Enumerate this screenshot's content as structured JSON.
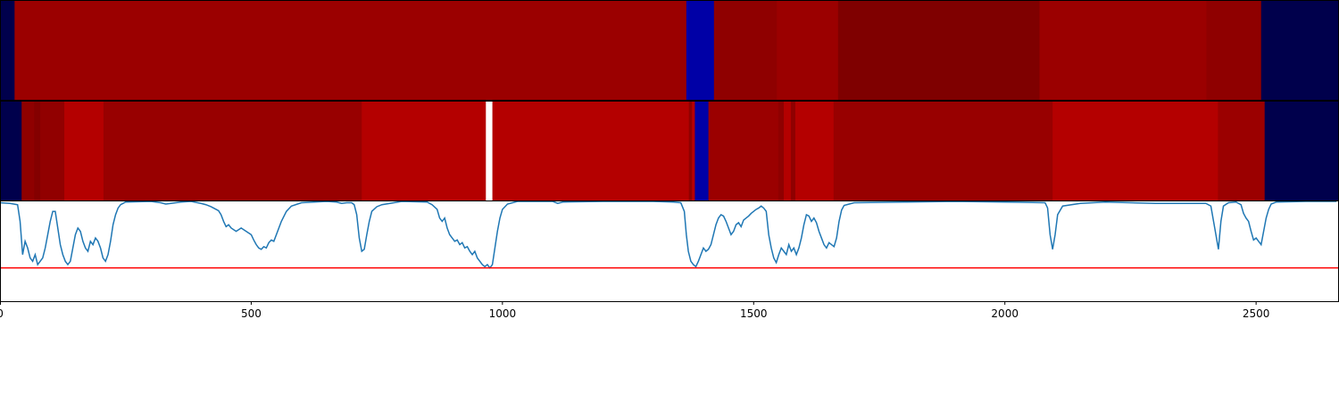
{
  "chart_data": {
    "type": "heatmap",
    "x_range": [
      0,
      2665
    ],
    "x_ticks": [
      0,
      500,
      1000,
      1500,
      2000,
      2500
    ],
    "x_tick_labels": [
      "0",
      "500",
      "1000",
      "1500",
      "2000",
      "2500"
    ],
    "grid": false,
    "legend": "none",
    "colormap": "seismic",
    "tracks": [
      {
        "segments": [
          {
            "start": 0,
            "end": 29,
            "color": "#00004c"
          },
          {
            "start": 29,
            "end": 1366,
            "color": "#9b0000"
          },
          {
            "start": 1366,
            "end": 1421,
            "color": "#0000a6"
          },
          {
            "start": 1421,
            "end": 1546,
            "color": "#8f0000"
          },
          {
            "start": 1546,
            "end": 1668,
            "color": "#9b0000"
          },
          {
            "start": 1668,
            "end": 2069,
            "color": "#7f0000"
          },
          {
            "start": 2069,
            "end": 2401,
            "color": "#9b0000"
          },
          {
            "start": 2401,
            "end": 2510,
            "color": "#8f0000"
          },
          {
            "start": 2510,
            "end": 2665,
            "color": "#00004c"
          }
        ]
      },
      {
        "segments": [
          {
            "start": 0,
            "end": 43,
            "color": "#00004c"
          },
          {
            "start": 43,
            "end": 68,
            "color": "#8f0000"
          },
          {
            "start": 68,
            "end": 80,
            "color": "#840000"
          },
          {
            "start": 80,
            "end": 128,
            "color": "#910000"
          },
          {
            "start": 128,
            "end": 206,
            "color": "#b40000"
          },
          {
            "start": 206,
            "end": 720,
            "color": "#980000"
          },
          {
            "start": 720,
            "end": 967,
            "color": "#b40000"
          },
          {
            "start": 967,
            "end": 980,
            "color": "#ffffff"
          },
          {
            "start": 980,
            "end": 1371,
            "color": "#b40000"
          },
          {
            "start": 1371,
            "end": 1377,
            "color": "#8f0000"
          },
          {
            "start": 1377,
            "end": 1383,
            "color": "#b40000"
          },
          {
            "start": 1383,
            "end": 1410,
            "color": "#0000a6"
          },
          {
            "start": 1410,
            "end": 1549,
            "color": "#9b0000"
          },
          {
            "start": 1549,
            "end": 1560,
            "color": "#8f0000"
          },
          {
            "start": 1560,
            "end": 1574,
            "color": "#b40000"
          },
          {
            "start": 1574,
            "end": 1583,
            "color": "#8f0000"
          },
          {
            "start": 1583,
            "end": 1659,
            "color": "#b40000"
          },
          {
            "start": 1659,
            "end": 2095,
            "color": "#980000"
          },
          {
            "start": 2095,
            "end": 2424,
            "color": "#b40000"
          },
          {
            "start": 2424,
            "end": 2517,
            "color": "#9b0000"
          },
          {
            "start": 2517,
            "end": 2665,
            "color": "#00004c"
          }
        ]
      }
    ],
    "line": {
      "color": "#1f77b4",
      "threshold": 0.0,
      "threshold_color": "#ff0000",
      "ylim": [
        -0.5,
        1.0
      ],
      "points": [
        [
          0,
          0.98
        ],
        [
          20,
          0.97
        ],
        [
          35,
          0.95
        ],
        [
          40,
          0.7
        ],
        [
          45,
          0.2
        ],
        [
          50,
          0.4
        ],
        [
          55,
          0.3
        ],
        [
          60,
          0.15
        ],
        [
          65,
          0.1
        ],
        [
          70,
          0.2
        ],
        [
          75,
          0.05
        ],
        [
          80,
          0.1
        ],
        [
          85,
          0.15
        ],
        [
          90,
          0.3
        ],
        [
          95,
          0.5
        ],
        [
          100,
          0.7
        ],
        [
          105,
          0.85
        ],
        [
          110,
          0.85
        ],
        [
          115,
          0.6
        ],
        [
          120,
          0.35
        ],
        [
          125,
          0.2
        ],
        [
          130,
          0.1
        ],
        [
          135,
          0.05
        ],
        [
          140,
          0.1
        ],
        [
          145,
          0.3
        ],
        [
          150,
          0.5
        ],
        [
          155,
          0.6
        ],
        [
          160,
          0.55
        ],
        [
          165,
          0.4
        ],
        [
          170,
          0.3
        ],
        [
          175,
          0.25
        ],
        [
          180,
          0.4
        ],
        [
          185,
          0.35
        ],
        [
          190,
          0.45
        ],
        [
          195,
          0.4
        ],
        [
          200,
          0.3
        ],
        [
          205,
          0.15
        ],
        [
          210,
          0.1
        ],
        [
          215,
          0.2
        ],
        [
          220,
          0.4
        ],
        [
          225,
          0.65
        ],
        [
          230,
          0.8
        ],
        [
          235,
          0.9
        ],
        [
          240,
          0.95
        ],
        [
          250,
          0.99
        ],
        [
          300,
          1.0
        ],
        [
          320,
          0.98
        ],
        [
          330,
          0.96
        ],
        [
          340,
          0.97
        ],
        [
          360,
          0.99
        ],
        [
          380,
          1.0
        ],
        [
          400,
          0.97
        ],
        [
          410,
          0.95
        ],
        [
          420,
          0.92
        ],
        [
          430,
          0.88
        ],
        [
          435,
          0.86
        ],
        [
          440,
          0.8
        ],
        [
          445,
          0.7
        ],
        [
          450,
          0.62
        ],
        [
          455,
          0.65
        ],
        [
          460,
          0.6
        ],
        [
          470,
          0.55
        ],
        [
          480,
          0.6
        ],
        [
          490,
          0.55
        ],
        [
          500,
          0.5
        ],
        [
          505,
          0.42
        ],
        [
          510,
          0.35
        ],
        [
          515,
          0.3
        ],
        [
          520,
          0.28
        ],
        [
          525,
          0.32
        ],
        [
          530,
          0.3
        ],
        [
          535,
          0.38
        ],
        [
          540,
          0.42
        ],
        [
          545,
          0.4
        ],
        [
          550,
          0.5
        ],
        [
          560,
          0.7
        ],
        [
          570,
          0.85
        ],
        [
          580,
          0.93
        ],
        [
          600,
          0.98
        ],
        [
          650,
          1.0
        ],
        [
          670,
          0.99
        ],
        [
          680,
          0.97
        ],
        [
          690,
          0.98
        ],
        [
          700,
          0.98
        ],
        [
          705,
          0.95
        ],
        [
          710,
          0.8
        ],
        [
          715,
          0.45
        ],
        [
          720,
          0.25
        ],
        [
          725,
          0.28
        ],
        [
          730,
          0.5
        ],
        [
          735,
          0.7
        ],
        [
          740,
          0.85
        ],
        [
          750,
          0.92
        ],
        [
          760,
          0.95
        ],
        [
          800,
          1.0
        ],
        [
          850,
          0.99
        ],
        [
          860,
          0.95
        ],
        [
          870,
          0.88
        ],
        [
          875,
          0.75
        ],
        [
          880,
          0.7
        ],
        [
          885,
          0.75
        ],
        [
          890,
          0.6
        ],
        [
          895,
          0.5
        ],
        [
          900,
          0.45
        ],
        [
          905,
          0.4
        ],
        [
          910,
          0.42
        ],
        [
          915,
          0.35
        ],
        [
          920,
          0.38
        ],
        [
          925,
          0.3
        ],
        [
          930,
          0.32
        ],
        [
          935,
          0.25
        ],
        [
          940,
          0.2
        ],
        [
          945,
          0.25
        ],
        [
          950,
          0.15
        ],
        [
          955,
          0.1
        ],
        [
          960,
          0.05
        ],
        [
          965,
          0.02
        ],
        [
          970,
          0.05
        ],
        [
          975,
          0.0
        ],
        [
          980,
          0.05
        ],
        [
          985,
          0.3
        ],
        [
          990,
          0.55
        ],
        [
          995,
          0.75
        ],
        [
          1000,
          0.88
        ],
        [
          1010,
          0.96
        ],
        [
          1030,
          1.0
        ],
        [
          1100,
          1.0
        ],
        [
          1110,
          0.97
        ],
        [
          1120,
          0.99
        ],
        [
          1200,
          1.0
        ],
        [
          1300,
          1.0
        ],
        [
          1340,
          0.99
        ],
        [
          1355,
          0.98
        ],
        [
          1362,
          0.85
        ],
        [
          1366,
          0.5
        ],
        [
          1370,
          0.25
        ],
        [
          1375,
          0.1
        ],
        [
          1380,
          0.05
        ],
        [
          1385,
          0.02
        ],
        [
          1390,
          0.1
        ],
        [
          1395,
          0.2
        ],
        [
          1400,
          0.3
        ],
        [
          1405,
          0.25
        ],
        [
          1410,
          0.28
        ],
        [
          1415,
          0.35
        ],
        [
          1420,
          0.5
        ],
        [
          1425,
          0.65
        ],
        [
          1430,
          0.75
        ],
        [
          1435,
          0.8
        ],
        [
          1440,
          0.78
        ],
        [
          1445,
          0.7
        ],
        [
          1450,
          0.6
        ],
        [
          1455,
          0.5
        ],
        [
          1460,
          0.55
        ],
        [
          1465,
          0.65
        ],
        [
          1470,
          0.68
        ],
        [
          1475,
          0.62
        ],
        [
          1480,
          0.72
        ],
        [
          1485,
          0.75
        ],
        [
          1490,
          0.78
        ],
        [
          1495,
          0.82
        ],
        [
          1500,
          0.85
        ],
        [
          1505,
          0.88
        ],
        [
          1510,
          0.9
        ],
        [
          1515,
          0.93
        ],
        [
          1520,
          0.9
        ],
        [
          1525,
          0.85
        ],
        [
          1530,
          0.5
        ],
        [
          1535,
          0.3
        ],
        [
          1540,
          0.15
        ],
        [
          1545,
          0.08
        ],
        [
          1550,
          0.2
        ],
        [
          1555,
          0.3
        ],
        [
          1560,
          0.25
        ],
        [
          1565,
          0.2
        ],
        [
          1570,
          0.35
        ],
        [
          1575,
          0.25
        ],
        [
          1580,
          0.3
        ],
        [
          1585,
          0.2
        ],
        [
          1590,
          0.3
        ],
        [
          1595,
          0.45
        ],
        [
          1600,
          0.65
        ],
        [
          1605,
          0.8
        ],
        [
          1610,
          0.78
        ],
        [
          1615,
          0.7
        ],
        [
          1620,
          0.75
        ],
        [
          1625,
          0.68
        ],
        [
          1630,
          0.55
        ],
        [
          1635,
          0.45
        ],
        [
          1640,
          0.35
        ],
        [
          1645,
          0.3
        ],
        [
          1650,
          0.38
        ],
        [
          1655,
          0.35
        ],
        [
          1660,
          0.32
        ],
        [
          1665,
          0.45
        ],
        [
          1670,
          0.7
        ],
        [
          1675,
          0.87
        ],
        [
          1680,
          0.94
        ],
        [
          1700,
          0.98
        ],
        [
          1800,
          0.99
        ],
        [
          1900,
          1.0
        ],
        [
          2000,
          0.99
        ],
        [
          2080,
          0.98
        ],
        [
          2085,
          0.9
        ],
        [
          2090,
          0.5
        ],
        [
          2095,
          0.28
        ],
        [
          2100,
          0.5
        ],
        [
          2105,
          0.8
        ],
        [
          2115,
          0.93
        ],
        [
          2150,
          0.97
        ],
        [
          2200,
          0.99
        ],
        [
          2250,
          0.98
        ],
        [
          2300,
          0.97
        ],
        [
          2350,
          0.97
        ],
        [
          2400,
          0.97
        ],
        [
          2410,
          0.93
        ],
        [
          2420,
          0.5
        ],
        [
          2425,
          0.28
        ],
        [
          2430,
          0.7
        ],
        [
          2435,
          0.93
        ],
        [
          2445,
          0.98
        ],
        [
          2460,
          0.99
        ],
        [
          2470,
          0.95
        ],
        [
          2475,
          0.82
        ],
        [
          2480,
          0.75
        ],
        [
          2485,
          0.7
        ],
        [
          2490,
          0.55
        ],
        [
          2495,
          0.42
        ],
        [
          2500,
          0.45
        ],
        [
          2505,
          0.4
        ],
        [
          2510,
          0.35
        ],
        [
          2515,
          0.55
        ],
        [
          2520,
          0.75
        ],
        [
          2525,
          0.88
        ],
        [
          2530,
          0.96
        ],
        [
          2540,
          0.99
        ],
        [
          2600,
          1.0
        ],
        [
          2660,
          1.0
        ]
      ]
    }
  }
}
